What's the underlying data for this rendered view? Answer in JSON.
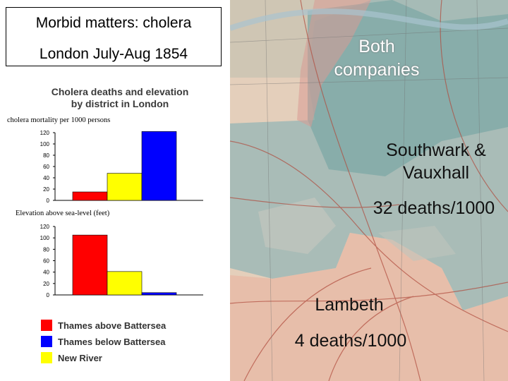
{
  "slide": {
    "title_line1": "Morbid matters: cholera",
    "title_line2": "London July-Aug 1854"
  },
  "chart_header": {
    "line1": "Cholera deaths and elevation",
    "line2": "by district in London"
  },
  "chart_data": [
    {
      "type": "bar",
      "title": "cholera mortality per 1000 persons",
      "categories": [
        "Thames above Battersea",
        "New River",
        "Thames below Battersea"
      ],
      "values": [
        15,
        48,
        122
      ],
      "colors": [
        "#ff0000",
        "#ffff00",
        "#0000ff"
      ],
      "ylim": [
        0,
        120
      ],
      "yticks": [
        "0",
        "20",
        "40",
        "60",
        "80",
        "100",
        "120"
      ],
      "grid": false
    },
    {
      "type": "bar",
      "title": "Elevation above sea-level (feet)",
      "categories": [
        "Thames above Battersea",
        "New River",
        "Thames below Battersea"
      ],
      "values": [
        105,
        41,
        4
      ],
      "colors": [
        "#ff0000",
        "#ffff00",
        "#0000ff"
      ],
      "ylim": [
        0,
        120
      ],
      "yticks": [
        "0",
        "20",
        "40",
        "60",
        "80",
        "100",
        "120"
      ],
      "grid": false
    }
  ],
  "legend": [
    {
      "label": "Thames above Battersea",
      "color": "#ff0000"
    },
    {
      "label": "Thames below Battersea",
      "color": "#0000ff"
    },
    {
      "label": "New River",
      "color": "#ffff00"
    }
  ],
  "map": {
    "both_line1": "Both",
    "both_line2": "companies",
    "sv_line1": "Southwark &",
    "sv_line2": "Vauxhall",
    "sv_rate": "32 deaths/1000",
    "lambeth": "Lambeth",
    "lambeth_rate": "4 deaths/1000"
  }
}
